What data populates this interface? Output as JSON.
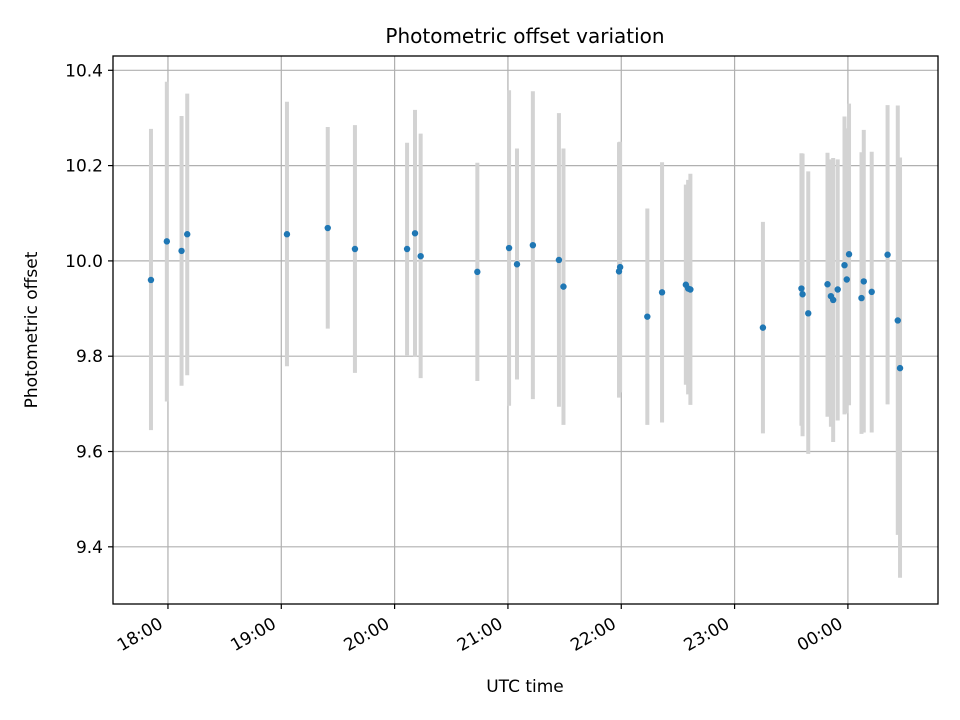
{
  "chart_data": {
    "type": "scatter",
    "title": "Photometric offset variation",
    "xlabel": "UTC time",
    "ylabel": "Photometric offset",
    "x_unit": "hours after 17:00 UTC",
    "xlim": [
      17.515,
      24.795
    ],
    "ylim": [
      9.28,
      10.43
    ],
    "grid": true,
    "x_ticks": [
      {
        "value": 18.0,
        "label": "18:00"
      },
      {
        "value": 19.0,
        "label": "19:00"
      },
      {
        "value": 20.0,
        "label": "20:00"
      },
      {
        "value": 21.0,
        "label": "21:00"
      },
      {
        "value": 22.0,
        "label": "22:00"
      },
      {
        "value": 23.0,
        "label": "23:00"
      },
      {
        "value": 24.0,
        "label": "00:00"
      }
    ],
    "y_ticks": [
      {
        "value": 9.4,
        "label": "9.4"
      },
      {
        "value": 9.6,
        "label": "9.6"
      },
      {
        "value": 9.8,
        "label": "9.8"
      },
      {
        "value": 10.0,
        "label": "10.0"
      },
      {
        "value": 10.2,
        "label": "10.2"
      },
      {
        "value": 10.4,
        "label": "10.4"
      }
    ],
    "series": [
      {
        "name": "offset",
        "marker_color": "#1f77b4",
        "errorbar_color": "#d3d3d3",
        "points": [
          {
            "x": 17.85,
            "y": 9.96,
            "low": 9.645,
            "high": 10.277
          },
          {
            "x": 17.99,
            "y": 10.041,
            "low": 9.705,
            "high": 10.376
          },
          {
            "x": 18.12,
            "y": 10.021,
            "low": 9.738,
            "high": 10.304
          },
          {
            "x": 18.17,
            "y": 10.056,
            "low": 9.76,
            "high": 10.351
          },
          {
            "x": 19.05,
            "y": 10.056,
            "low": 9.779,
            "high": 10.334
          },
          {
            "x": 19.41,
            "y": 10.069,
            "low": 9.858,
            "high": 10.281
          },
          {
            "x": 19.65,
            "y": 10.025,
            "low": 9.765,
            "high": 10.285
          },
          {
            "x": 20.11,
            "y": 10.025,
            "low": 9.802,
            "high": 10.248
          },
          {
            "x": 20.18,
            "y": 10.058,
            "low": 9.799,
            "high": 10.317
          },
          {
            "x": 20.23,
            "y": 10.01,
            "low": 9.754,
            "high": 10.267
          },
          {
            "x": 20.73,
            "y": 9.977,
            "low": 9.748,
            "high": 10.206
          },
          {
            "x": 21.01,
            "y": 10.027,
            "low": 9.696,
            "high": 10.358
          },
          {
            "x": 21.08,
            "y": 9.993,
            "low": 9.751,
            "high": 10.236
          },
          {
            "x": 21.22,
            "y": 10.033,
            "low": 9.71,
            "high": 10.356
          },
          {
            "x": 21.45,
            "y": 10.002,
            "low": 9.694,
            "high": 10.31
          },
          {
            "x": 21.49,
            "y": 9.946,
            "low": 9.656,
            "high": 10.236
          },
          {
            "x": 21.98,
            "y": 9.978,
            "low": 9.713,
            "high": 10.249
          },
          {
            "x": 21.99,
            "y": 9.987,
            "low": 9.724,
            "high": 10.25
          },
          {
            "x": 22.23,
            "y": 9.883,
            "low": 9.656,
            "high": 10.11
          },
          {
            "x": 22.36,
            "y": 9.934,
            "low": 9.661,
            "high": 10.207
          },
          {
            "x": 22.57,
            "y": 9.95,
            "low": 9.74,
            "high": 10.16
          },
          {
            "x": 22.59,
            "y": 9.942,
            "low": 9.72,
            "high": 10.17
          },
          {
            "x": 22.61,
            "y": 9.94,
            "low": 9.698,
            "high": 10.183
          },
          {
            "x": 23.25,
            "y": 9.86,
            "low": 9.638,
            "high": 10.082
          },
          {
            "x": 23.59,
            "y": 9.942,
            "low": 9.654,
            "high": 10.226
          },
          {
            "x": 23.6,
            "y": 9.93,
            "low": 9.632,
            "high": 10.225
          },
          {
            "x": 23.65,
            "y": 9.89,
            "low": 9.595,
            "high": 10.188
          },
          {
            "x": 23.82,
            "y": 9.951,
            "low": 9.673,
            "high": 10.227
          },
          {
            "x": 23.85,
            "y": 9.926,
            "low": 9.652,
            "high": 10.213
          },
          {
            "x": 23.87,
            "y": 9.918,
            "low": 9.62,
            "high": 10.216
          },
          {
            "x": 23.91,
            "y": 9.94,
            "low": 9.665,
            "high": 10.213
          },
          {
            "x": 23.97,
            "y": 9.991,
            "low": 9.678,
            "high": 10.303
          },
          {
            "x": 23.99,
            "y": 9.961,
            "low": 9.68,
            "high": 10.278
          },
          {
            "x": 24.01,
            "y": 10.014,
            "low": 9.697,
            "high": 10.33
          },
          {
            "x": 24.12,
            "y": 9.922,
            "low": 9.637,
            "high": 10.228
          },
          {
            "x": 24.14,
            "y": 9.957,
            "low": 9.64,
            "high": 10.275
          },
          {
            "x": 24.21,
            "y": 9.935,
            "low": 9.64,
            "high": 10.229
          },
          {
            "x": 24.35,
            "y": 10.013,
            "low": 9.699,
            "high": 10.327
          },
          {
            "x": 24.44,
            "y": 9.875,
            "low": 9.425,
            "high": 10.326
          },
          {
            "x": 24.46,
            "y": 9.775,
            "low": 9.335,
            "high": 10.217
          }
        ]
      }
    ]
  }
}
